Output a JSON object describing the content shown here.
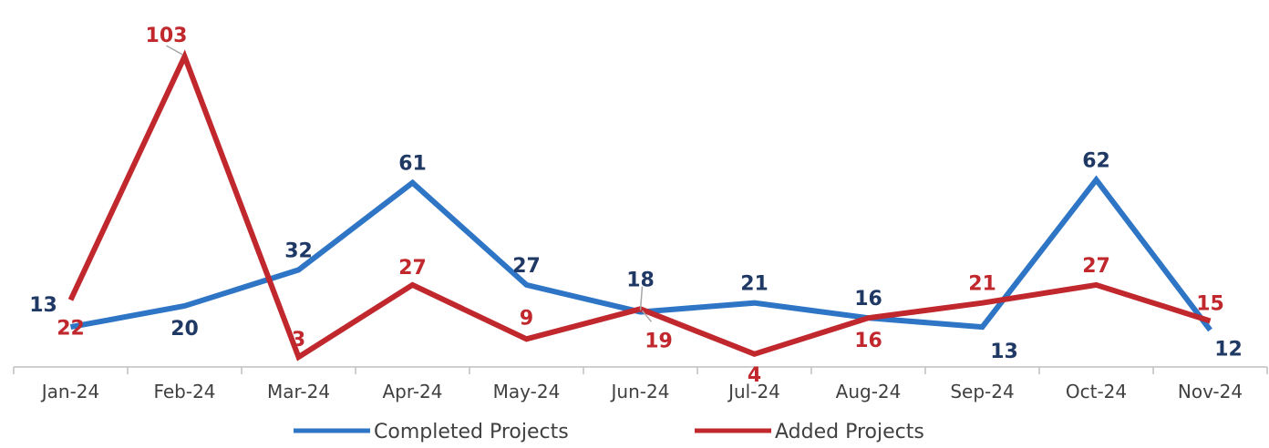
{
  "chart_data": {
    "type": "line",
    "categories": [
      "Jan-24",
      "Feb-24",
      "Mar-24",
      "Apr-24",
      "May-24",
      "Jun-24",
      "Jul-24",
      "Aug-24",
      "Sep-24",
      "Oct-24",
      "Nov-24"
    ],
    "series": [
      {
        "name": "Completed Projects",
        "values": [
          13,
          20,
          32,
          61,
          27,
          18,
          21,
          16,
          13,
          62,
          12
        ],
        "color": "#2e75c6",
        "label_color": "#1f3864"
      },
      {
        "name": "Added Projects",
        "values": [
          22,
          103,
          3,
          27,
          9,
          19,
          4,
          16,
          21,
          27,
          15
        ],
        "color": "#c0282d",
        "label_color": "#c0282d"
      }
    ],
    "legend": "bottom",
    "grid": false
  }
}
